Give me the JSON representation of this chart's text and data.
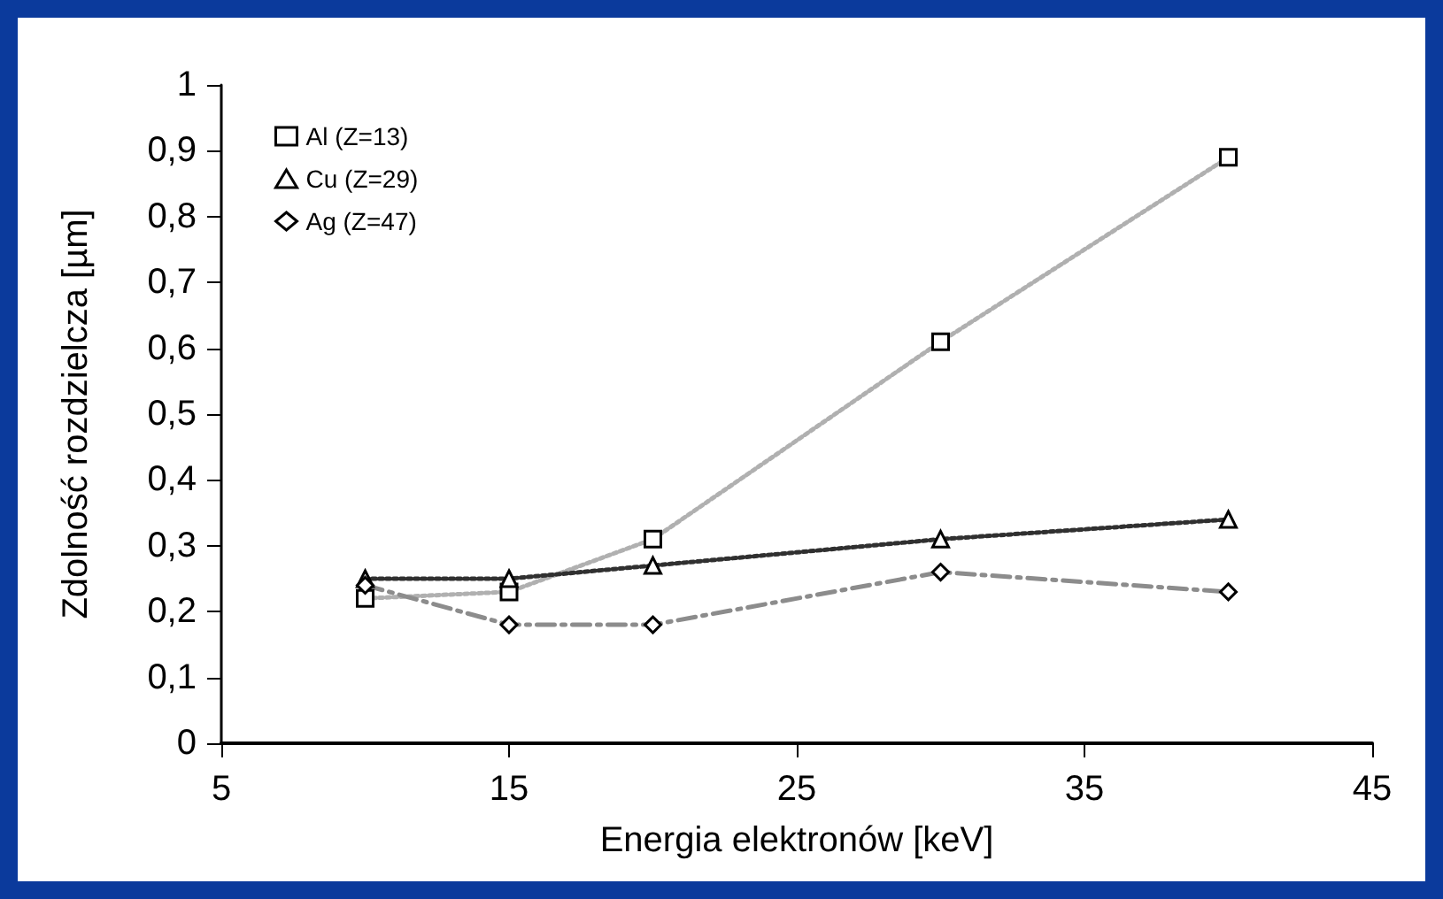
{
  "chart_data": {
    "type": "line",
    "xlabel": "Energia elektronów [keV]",
    "ylabel": "Zdolność rozdzielcza [µm]",
    "x": [
      10,
      15,
      20,
      30,
      40
    ],
    "series": [
      {
        "name": "Al (Z=13)",
        "color": "#b0b0b0",
        "marker": "square",
        "line_style": "dotted",
        "values": [
          0.22,
          0.23,
          0.31,
          0.61,
          0.89
        ]
      },
      {
        "name": "Cu (Z=29)",
        "color": "#303030",
        "marker": "triangle",
        "line_style": "dotted",
        "values": [
          0.25,
          0.25,
          0.27,
          0.31,
          0.34
        ]
      },
      {
        "name": "Ag (Z=47)",
        "color": "#8c8c8c",
        "marker": "diamond",
        "line_style": "dashed",
        "values": [
          0.24,
          0.18,
          0.18,
          0.26,
          0.23
        ]
      }
    ],
    "xlim": [
      5,
      45
    ],
    "xticks": [
      5,
      15,
      25,
      35,
      45
    ],
    "ylim": [
      0,
      1
    ],
    "yticks": [
      0,
      {
        "value": 0.1,
        "label": "0,1"
      },
      {
        "value": 0.2,
        "label": "0,2"
      },
      {
        "value": 0.3,
        "label": "0,3"
      },
      {
        "value": 0.4,
        "label": "0,4"
      },
      {
        "value": 0.5,
        "label": "0,5"
      },
      {
        "value": 0.6,
        "label": "0,6"
      },
      {
        "value": 0.7,
        "label": "0,7"
      },
      {
        "value": 0.8,
        "label": "0,8"
      },
      {
        "value": 0.9,
        "label": "0,9"
      },
      1
    ],
    "grid": false,
    "legend": "top left"
  }
}
